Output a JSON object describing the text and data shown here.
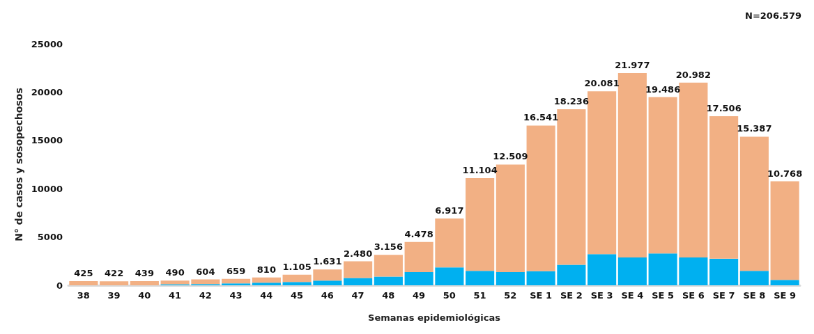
{
  "chart_data": {
    "type": "bar",
    "stacked": true,
    "xlabel": "Semanas epidemiológicas",
    "ylabel": "N° de casos y sosopechosos",
    "categories": [
      "38",
      "39",
      "40",
      "41",
      "42",
      "43",
      "44",
      "45",
      "46",
      "47",
      "48",
      "49",
      "50",
      "51",
      "52",
      "SE 1",
      "SE 2",
      "SE 3",
      "SE 4",
      "SE 5",
      "SE 6",
      "SE 7",
      "SE 8",
      "SE 9"
    ],
    "series": [
      {
        "color": "#00b0f0",
        "values": [
          0,
          0,
          0,
          100,
          130,
          200,
          270,
          340,
          480,
          750,
          900,
          1370,
          1850,
          1500,
          1370,
          1450,
          2130,
          3230,
          2880,
          3300,
          2880,
          2750,
          1500,
          550
        ]
      },
      {
        "color": "#f2b084",
        "values": [
          425,
          422,
          439,
          390,
          474,
          459,
          540,
          765,
          1151,
          1730,
          2256,
          3108,
          5067,
          9604,
          11139,
          15091,
          16106,
          16851,
          19097,
          16186,
          18102,
          14756,
          13887,
          10218
        ]
      }
    ],
    "totals": [
      "425",
      "422",
      "439",
      "490",
      "604",
      "659",
      "810",
      "1.105",
      "1.631",
      "2.480",
      "3.156",
      "4.478",
      "6.917",
      "11.104",
      "12.509",
      "16.541",
      "18.236",
      "20.081",
      "21.977",
      "19.486",
      "20.982",
      "17.506",
      "15.387",
      "10.768"
    ],
    "ylim": [
      0,
      25000
    ],
    "yticks": [
      0,
      5000,
      10000,
      15000,
      20000,
      25000
    ],
    "grid": false,
    "annotations": [
      "N=206.579"
    ]
  }
}
